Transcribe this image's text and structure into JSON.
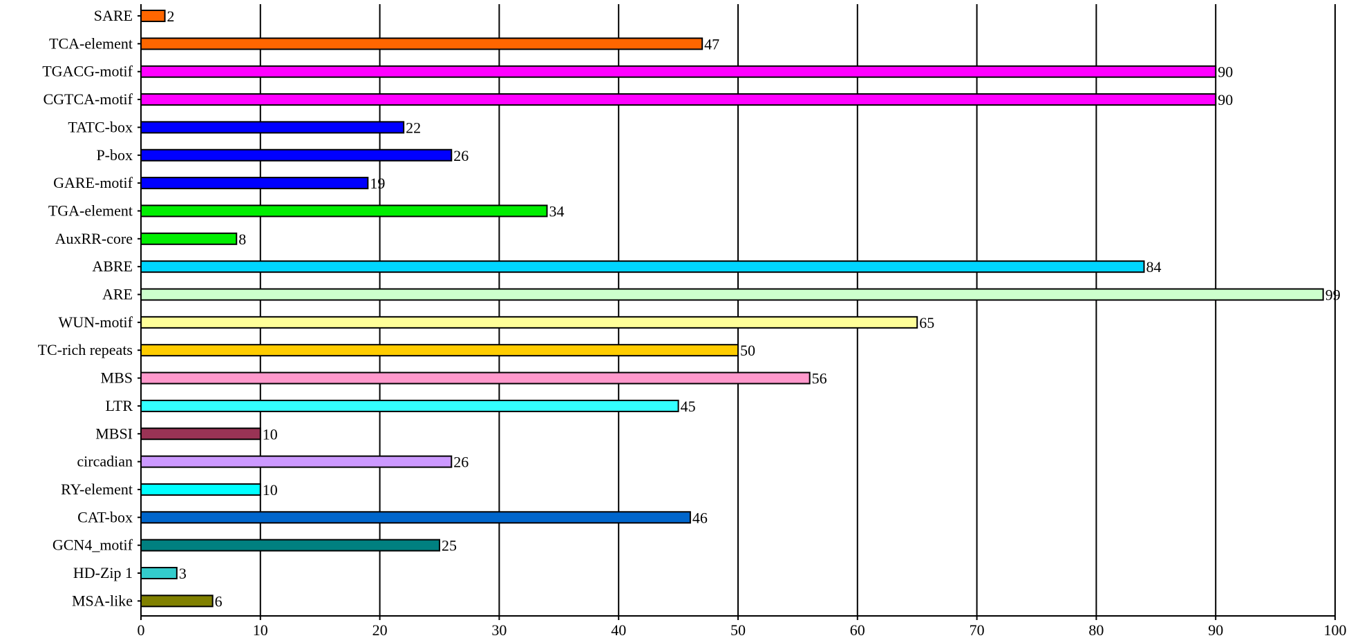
{
  "chart_data": {
    "type": "bar",
    "orientation": "horizontal",
    "title": "",
    "xlabel": "",
    "ylabel": "",
    "xlim": [
      0,
      100
    ],
    "x_ticks": [
      "0",
      "10",
      "20",
      "30",
      "40",
      "50",
      "60",
      "70",
      "80",
      "90",
      "100"
    ],
    "grid": "vertical",
    "legend": "none",
    "bars": [
      {
        "label": "SARE",
        "value": 2,
        "value_label": "2",
        "color": "#FF6600"
      },
      {
        "label": "TCA-element",
        "value": 47,
        "value_label": "47",
        "color": "#FF6600"
      },
      {
        "label": "TGACG-motif",
        "value": 90,
        "value_label": "90",
        "color": "#FF00FF"
      },
      {
        "label": "CGTCA-motif",
        "value": 90,
        "value_label": "90",
        "color": "#FF00FF"
      },
      {
        "label": "TATC-box",
        "value": 22,
        "value_label": "22",
        "color": "#0000FF"
      },
      {
        "label": "P-box",
        "value": 26,
        "value_label": "26",
        "color": "#0000FF"
      },
      {
        "label": "GARE-motif",
        "value": 19,
        "value_label": "19",
        "color": "#0000FF"
      },
      {
        "label": "TGA-element",
        "value": 34,
        "value_label": "34",
        "color": "#00EE00"
      },
      {
        "label": "AuxRR-core",
        "value": 8,
        "value_label": "8",
        "color": "#00EE00"
      },
      {
        "label": "ABRE",
        "value": 84,
        "value_label": "84",
        "color": "#00D5FF"
      },
      {
        "label": "ARE",
        "value": 99,
        "value_label": "99",
        "color": "#CCFFCC"
      },
      {
        "label": "WUN-motif",
        "value": 65,
        "value_label": "65",
        "color": "#FFFF99"
      },
      {
        "label": "TC-rich repeats",
        "value": 50,
        "value_label": "50",
        "color": "#FFCC00"
      },
      {
        "label": "MBS",
        "value": 56,
        "value_label": "56",
        "color": "#FF99CC"
      },
      {
        "label": "LTR",
        "value": 45,
        "value_label": "45",
        "color": "#33FFFF"
      },
      {
        "label": "MBSI",
        "value": 10,
        "value_label": "10",
        "color": "#993355"
      },
      {
        "label": "circadian",
        "value": 26,
        "value_label": "26",
        "color": "#CC99FF"
      },
      {
        "label": "RY-element",
        "value": 10,
        "value_label": "10",
        "color": "#00FFFF"
      },
      {
        "label": "CAT-box",
        "value": 46,
        "value_label": "46",
        "color": "#0066CC"
      },
      {
        "label": "GCN4_motif",
        "value": 25,
        "value_label": "25",
        "color": "#008080"
      },
      {
        "label": "HD-Zip 1",
        "value": 3,
        "value_label": "3",
        "color": "#33CCCC"
      },
      {
        "label": "MSA-like",
        "value": 6,
        "value_label": "6",
        "color": "#808000"
      }
    ]
  }
}
